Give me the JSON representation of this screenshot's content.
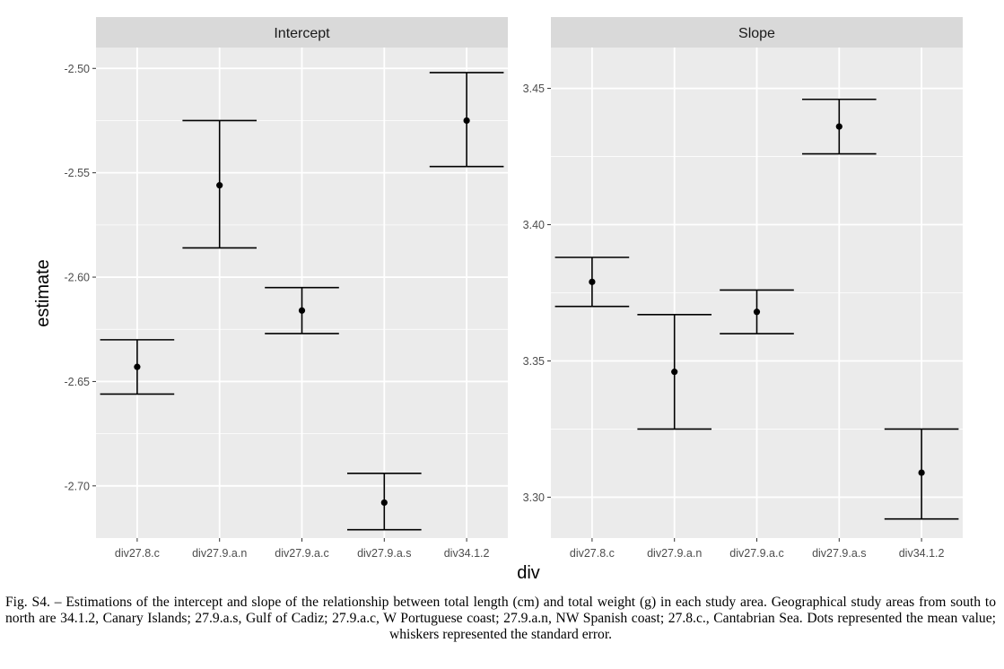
{
  "chart_data": {
    "type": "scatter",
    "geom": "pointrange-errorbar",
    "xlabel": "div",
    "ylabel": "estimate",
    "categories": [
      "div27.8.c",
      "div27.9.a.n",
      "div27.9.a.c",
      "div27.9.a.s",
      "div34.1.2"
    ],
    "grid": true,
    "panels": [
      {
        "title": "Intercept",
        "ylim": [
          -2.725,
          -2.49
        ],
        "yticks": [
          -2.7,
          -2.65,
          -2.6,
          -2.55,
          -2.5
        ],
        "ytick_labels": [
          "-2.70",
          "-2.65",
          "-2.60",
          "-2.55",
          "-2.50"
        ],
        "mean": [
          -2.643,
          -2.556,
          -2.616,
          -2.708,
          -2.525
        ],
        "lower": [
          -2.656,
          -2.586,
          -2.627,
          -2.721,
          -2.547
        ],
        "upper": [
          -2.63,
          -2.525,
          -2.605,
          -2.694,
          -2.502
        ]
      },
      {
        "title": "Slope",
        "ylim": [
          3.285,
          3.465
        ],
        "yticks": [
          3.3,
          3.35,
          3.4,
          3.45
        ],
        "ytick_labels": [
          "3.30",
          "3.35",
          "3.40",
          "3.45"
        ],
        "mean": [
          3.379,
          3.346,
          3.368,
          3.436,
          3.309
        ],
        "lower": [
          3.37,
          3.325,
          3.36,
          3.426,
          3.292
        ],
        "upper": [
          3.388,
          3.367,
          3.376,
          3.446,
          3.325
        ]
      }
    ]
  },
  "caption": "Fig. S4. – Estimations of the intercept and slope of the relationship between total length (cm) and total weight (g) in each study area. Geographical study areas from south to north are 34.1.2, Canary Islands; 27.9.a.s, Gulf of Cadiz; 27.9.a.c, W Portuguese coast; 27.9.a.n, NW Spanish coast; 27.8.c., Cantabrian Sea. Dots represented the mean value; whiskers represented the standard error."
}
